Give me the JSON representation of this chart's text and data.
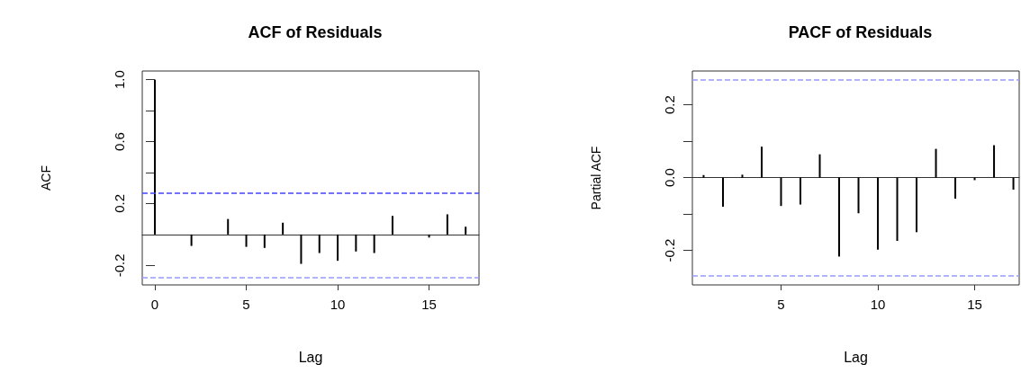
{
  "chart_data": [
    {
      "type": "bar",
      "title": "ACF of Residuals",
      "xlabel": "Lag",
      "ylabel": "ACF",
      "color": "#000000",
      "x": [
        0,
        1,
        2,
        3,
        4,
        5,
        6,
        7,
        8,
        9,
        10,
        11,
        12,
        13,
        14,
        15,
        16,
        17
      ],
      "values": [
        1.0,
        0.0,
        -0.074,
        0.0,
        0.1,
        -0.08,
        -0.087,
        0.076,
        -0.19,
        -0.12,
        -0.17,
        -0.11,
        -0.12,
        0.12,
        0.0,
        -0.02,
        0.13,
        0.05
      ],
      "xlim": [
        -0.69,
        17.73
      ],
      "xticks": [
        0,
        5,
        10,
        15
      ],
      "ylim": [
        -0.326,
        1.056
      ],
      "yticks": [
        {
          "value": -0.2,
          "label": "-0.2"
        },
        {
          "value": 0,
          "label": null
        },
        {
          "value": 0.2,
          "label": "0.2"
        },
        {
          "value": 0.4,
          "label": null
        },
        {
          "value": 0.6,
          "label": "0.6"
        },
        {
          "value": 0.8,
          "label": null
        },
        {
          "value": 1,
          "label": "1.0"
        }
      ],
      "ref_lines": [
        {
          "axis": "y",
          "value": 0.27,
          "color": "#4444ff",
          "line_style": "dashed"
        },
        {
          "axis": "y",
          "value": -0.278,
          "color": "#9999ff",
          "line_style": "dashed"
        }
      ]
    },
    {
      "type": "bar",
      "title": "PACF of Residuals",
      "xlabel": "Lag",
      "ylabel": "Partial ACF",
      "color": "#000000",
      "x": [
        1,
        2,
        3,
        4,
        5,
        6,
        7,
        8,
        9,
        10,
        11,
        12,
        13,
        14,
        15,
        16,
        17
      ],
      "values": [
        0.007,
        -0.08,
        0.008,
        0.085,
        -0.078,
        -0.074,
        0.064,
        -0.217,
        -0.098,
        -0.198,
        -0.174,
        -0.15,
        0.079,
        -0.058,
        -0.007,
        0.089,
        -0.033
      ],
      "xlim": [
        0.42,
        17.3
      ],
      "xticks": [
        5,
        10,
        15
      ],
      "ylim": [
        -0.295,
        0.293
      ],
      "yticks": [
        {
          "value": -0.2,
          "label": "-0.2"
        },
        {
          "value": -0.1,
          "label": null
        },
        {
          "value": 0,
          "label": "0.0"
        },
        {
          "value": 0.1,
          "label": null
        },
        {
          "value": 0.2,
          "label": "0.2"
        }
      ],
      "ref_lines": [
        {
          "axis": "y",
          "value": 0.271,
          "color": "#9999ff",
          "line_style": "dashed"
        },
        {
          "axis": "y",
          "value": -0.274,
          "color": "#9999ff",
          "line_style": "dashed"
        }
      ]
    }
  ]
}
